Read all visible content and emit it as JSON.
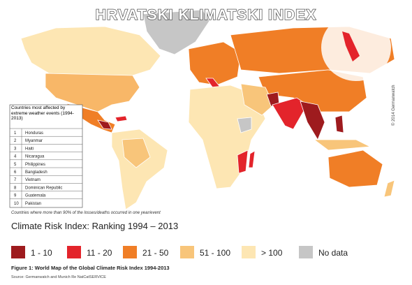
{
  "header": {
    "title": "HRVATSKI KLIMATSKI INDEX"
  },
  "table": {
    "title": "Countries most affected by extreme weather events (1994-2013)",
    "rows": [
      [
        1,
        "Honduras"
      ],
      [
        2,
        "Myanmar"
      ],
      [
        3,
        "Haiti"
      ],
      [
        4,
        "Nicaragua"
      ],
      [
        5,
        "Philippines"
      ],
      [
        6,
        "Bangladesh"
      ],
      [
        7,
        "Vietnam"
      ],
      [
        8,
        "Dominican Republic"
      ],
      [
        9,
        "Guatemala"
      ],
      [
        10,
        "Pakistan"
      ]
    ]
  },
  "footnote": "Countries where more than 90% of the losses/deaths occurred in one year/event",
  "copyright": "© 2014 Germanwatch",
  "legend": {
    "title": "Climate Risk Index: Ranking 1994 – 2013",
    "items": [
      {
        "label": "1 - 10",
        "color": "#9e1b1e"
      },
      {
        "label": "11 - 20",
        "color": "#e3242b"
      },
      {
        "label": "21 - 50",
        "color": "#f07e26"
      },
      {
        "label": "51 - 100",
        "color": "#f8c57a"
      },
      {
        "label": "> 100",
        "color": "#fde6b3"
      },
      {
        "label": "No data",
        "color": "#c6c6c6"
      }
    ]
  },
  "caption": "Figure 1: World Map of the Global Climate Risk Index 1994-2013",
  "source": "Source: Germanwatch and Munich Re NatCatSERVICE"
}
